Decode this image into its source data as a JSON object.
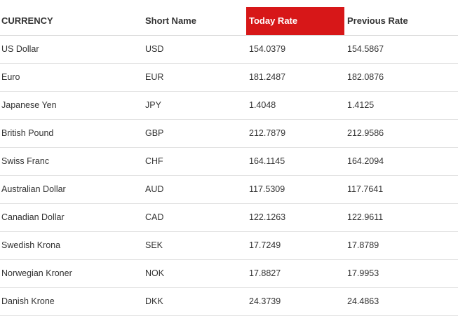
{
  "table": {
    "headers": {
      "currency": "CURRENCY",
      "short_name": "Short Name",
      "today_rate": "Today Rate",
      "previous_rate": "Previous Rate"
    },
    "rows": [
      {
        "currency": "US Dollar",
        "short": "USD",
        "today": "154.0379",
        "previous": "154.5867"
      },
      {
        "currency": "Euro",
        "short": "EUR",
        "today": "181.2487",
        "previous": "182.0876"
      },
      {
        "currency": "Japanese Yen",
        "short": "JPY",
        "today": "1.4048",
        "previous": "1.4125"
      },
      {
        "currency": "British Pound",
        "short": "GBP",
        "today": "212.7879",
        "previous": "212.9586"
      },
      {
        "currency": "Swiss Franc",
        "short": "CHF",
        "today": "164.1145",
        "previous": "164.2094"
      },
      {
        "currency": "Australian Dollar",
        "short": "AUD",
        "today": "117.5309",
        "previous": "117.7641"
      },
      {
        "currency": "Canadian Dollar",
        "short": "CAD",
        "today": "122.1263",
        "previous": "122.9611"
      },
      {
        "currency": "Swedish Krona",
        "short": "SEK",
        "today": "17.7249",
        "previous": "17.8789"
      },
      {
        "currency": "Norwegian Kroner",
        "short": "NOK",
        "today": "17.8827",
        "previous": "17.9953"
      },
      {
        "currency": "Danish Krone",
        "short": "DKK",
        "today": "24.3739",
        "previous": "24.4863"
      }
    ]
  },
  "colors": {
    "highlight_header_bg": "#d71718",
    "highlight_header_text": "#ffffff",
    "text": "#333333",
    "row_border": "#e3e3e3"
  }
}
